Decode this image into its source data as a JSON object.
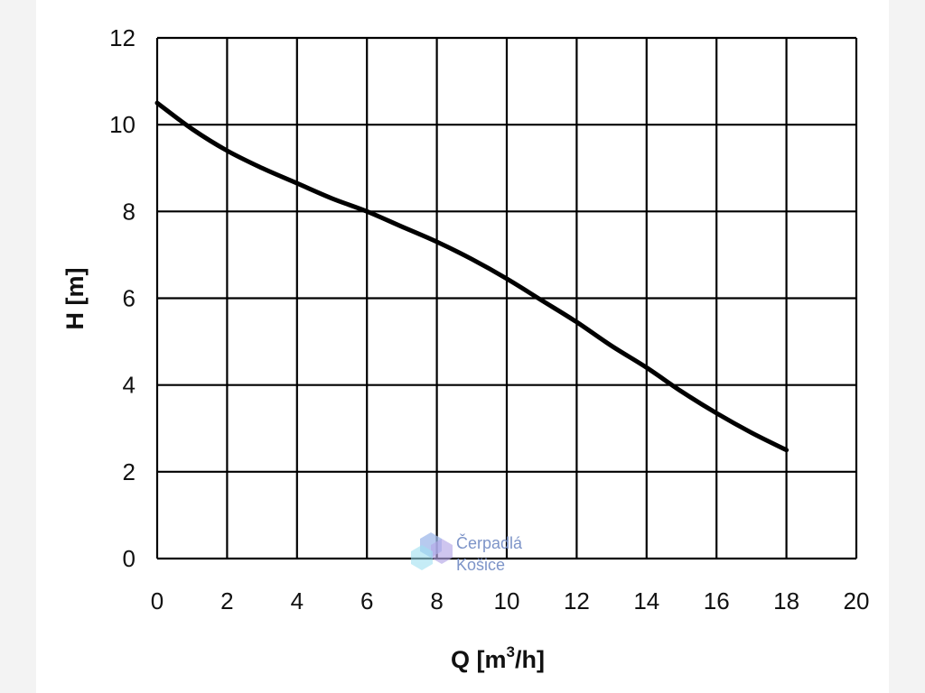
{
  "chart_data": {
    "type": "line",
    "xlabel": "Q [m",
    "xlabel_sup": "3",
    "xlabel_tail": "/h]",
    "ylabel": "H [m]",
    "xlim": [
      0,
      20
    ],
    "ylim": [
      0,
      12
    ],
    "xticks": [
      "0",
      "2",
      "4",
      "6",
      "8",
      "10",
      "12",
      "14",
      "16",
      "18",
      "20"
    ],
    "yticks": [
      "0",
      "2",
      "4",
      "6",
      "8",
      "10",
      "12"
    ],
    "grid": true,
    "series": [
      {
        "color": "#000000",
        "x": [
          0,
          1,
          2,
          3,
          4,
          5,
          6,
          7,
          8,
          9,
          10,
          11,
          12,
          13,
          14,
          15,
          16,
          17,
          18
        ],
        "y": [
          10.5,
          9.9,
          9.4,
          9.0,
          8.65,
          8.3,
          8.0,
          7.65,
          7.3,
          6.9,
          6.45,
          5.95,
          5.45,
          4.9,
          4.4,
          3.85,
          3.35,
          2.9,
          2.5
        ]
      }
    ]
  },
  "watermark": {
    "line1": "Čerpadlá",
    "line2": "Košice",
    "icon": "hexagon-logo-icon",
    "colors": [
      "#8fb0e6",
      "#9fe0f0",
      "#b8a8e8"
    ]
  }
}
